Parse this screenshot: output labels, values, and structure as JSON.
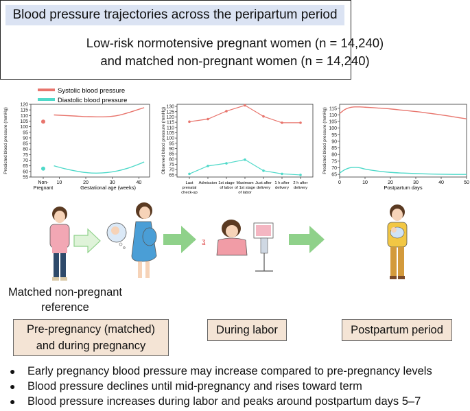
{
  "header": {
    "title": "Blood pressure trajectories across the peripartum period",
    "line1": "Low-risk normotensive pregnant women (n = 14,240)",
    "line2": "and matched non-pregnant women (n = 14,240)"
  },
  "legend": {
    "systolic": "Systolic blood pressure",
    "diastolic": "Diastolic blood pressure"
  },
  "colors": {
    "systolic": "#e8756d",
    "diastolic": "#4fd9c9",
    "stage_box": "#f4e4d5",
    "title_band": "#dbe3f3",
    "arrow": "#8fd18a"
  },
  "chart_data": [
    {
      "type": "line",
      "ylabel": "Predicted blood pressure (mmHg)",
      "xlabel": "Gestational age (weeks)",
      "yticks": [
        55,
        60,
        65,
        70,
        75,
        80,
        85,
        90,
        95,
        100,
        105,
        110,
        115,
        120
      ],
      "ylim": [
        55,
        120
      ],
      "xticks": [
        10,
        20,
        30,
        40
      ],
      "xlim": [
        5,
        43
      ],
      "nonpregnant_label": [
        "Non-",
        "Pregnant"
      ],
      "nonpregnant_points": {
        "systolic": 104.5,
        "diastolic": 62.5
      },
      "series": [
        {
          "key": "systolic",
          "x": [
            8,
            12,
            16,
            20,
            24,
            28,
            32,
            36,
            40,
            42
          ],
          "values": [
            110.5,
            110,
            109.5,
            109,
            108.8,
            108.9,
            110,
            112.5,
            115.5,
            117
          ]
        },
        {
          "key": "diastolic",
          "x": [
            8,
            12,
            16,
            20,
            24,
            28,
            32,
            36,
            40,
            42
          ],
          "values": [
            65,
            62.5,
            60.5,
            59,
            58.5,
            59,
            60.5,
            63,
            66.5,
            68.5
          ]
        }
      ]
    },
    {
      "type": "line",
      "ylabel": "Observed blood pressure (mmHg)",
      "yticks": [
        65,
        70,
        75,
        80,
        85,
        90,
        95,
        100,
        105,
        110,
        115,
        120,
        125,
        130
      ],
      "ylim": [
        63,
        132
      ],
      "categories": [
        [
          "Last",
          "prenatal",
          "check-up"
        ],
        [
          "Admission"
        ],
        [
          "1st stage",
          "of labor"
        ],
        [
          "Maximam",
          "of 1st stage",
          "of labor"
        ],
        [
          "Just after",
          "delivery"
        ],
        [
          "1 h after",
          "delivery"
        ],
        [
          "2 h after",
          "delivery"
        ]
      ],
      "series": [
        {
          "key": "systolic",
          "values": [
            115.5,
            118,
            125.5,
            131,
            120.5,
            114.5,
            114.5
          ]
        },
        {
          "key": "diastolic",
          "values": [
            66,
            73.5,
            76,
            79.5,
            69,
            66,
            65
          ]
        }
      ]
    },
    {
      "type": "line",
      "ylabel": "Predicted blood pressure (mmHg)",
      "xlabel": "Postpartum days",
      "yticks": [
        65,
        70,
        75,
        80,
        85,
        90,
        95,
        100,
        105,
        110,
        115
      ],
      "ylim": [
        63,
        118
      ],
      "xticks": [
        0,
        10,
        20,
        30,
        40,
        50
      ],
      "xlim": [
        0,
        50
      ],
      "series": [
        {
          "key": "systolic",
          "x": [
            0,
            2,
            4,
            6,
            8,
            10,
            15,
            20,
            25,
            30,
            35,
            40,
            45,
            50
          ],
          "values": [
            111,
            114,
            115.5,
            116,
            116,
            115.8,
            115.2,
            114.5,
            113.5,
            112.5,
            111.3,
            110,
            108.5,
            107
          ]
        },
        {
          "key": "diastolic",
          "x": [
            0,
            2,
            4,
            6,
            8,
            10,
            15,
            20,
            25,
            30,
            35,
            40,
            45,
            50
          ],
          "values": [
            66,
            68.5,
            70,
            70.3,
            70,
            69,
            67.5,
            66.5,
            66,
            65.6,
            65.3,
            65.1,
            65,
            65
          ]
        }
      ]
    }
  ],
  "reference": {
    "line1": "Matched non-pregnant",
    "line2": "reference"
  },
  "stages": {
    "pregnancy": [
      "Pre-pregnancy (matched)",
      "and during pregnancy"
    ],
    "labor": "During labor",
    "postpartum": "Postpartum period"
  },
  "bullets": [
    "Early pregnancy blood pressure may increase compared to pre-pregnancy levels",
    "Blood pressure declines until mid-pregnancy and rises toward term",
    "Blood pressure increases during labor and peaks around postpartum days 5–7"
  ]
}
